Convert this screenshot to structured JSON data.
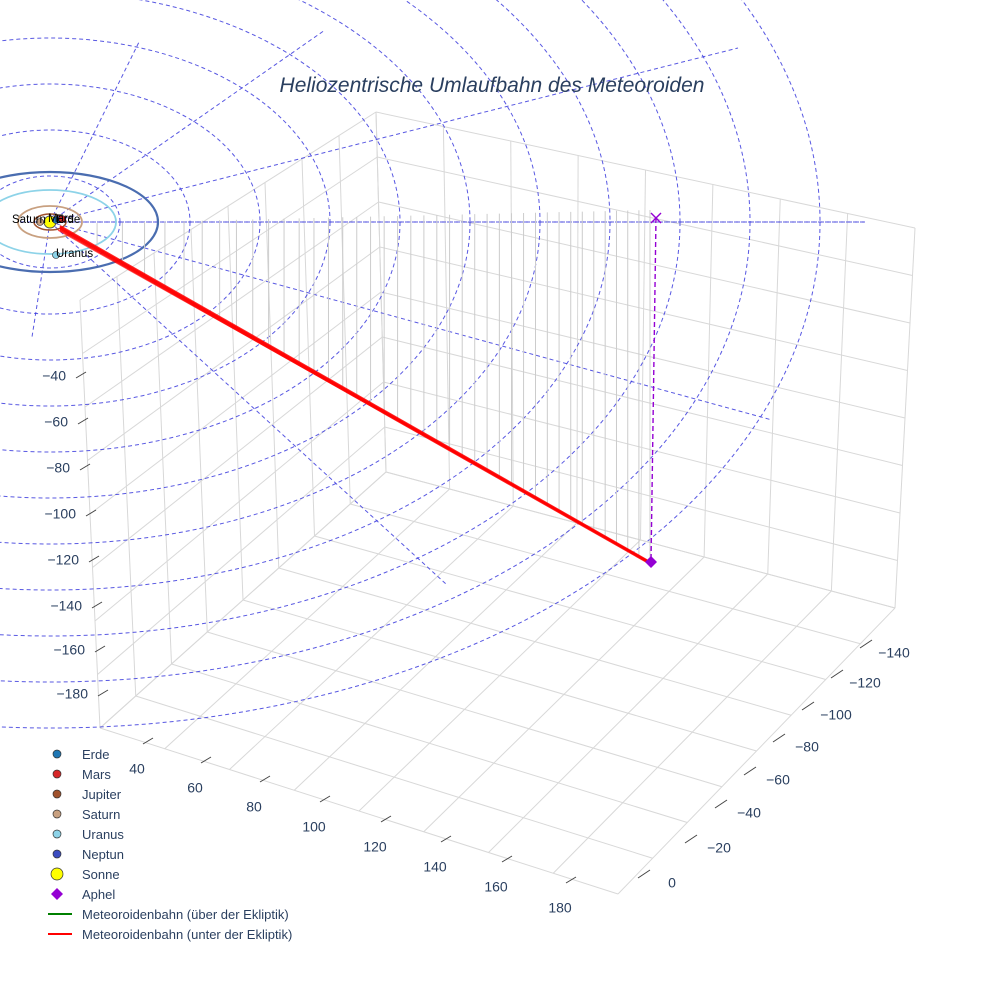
{
  "chart_data": {
    "type": "scatter3d",
    "title": "Heliozentrische Umlaufbahn des Meteoroiden",
    "axes": {
      "x": {
        "ticks": [
          -140,
          -120,
          -100,
          -80,
          -60,
          -40,
          -20,
          0
        ],
        "range": [
          -150,
          10
        ]
      },
      "y": {
        "ticks": [
          40,
          60,
          80,
          100,
          120,
          140,
          160,
          180
        ],
        "range": [
          30,
          190
        ]
      },
      "z": {
        "ticks": [
          -40,
          -60,
          -80,
          -100,
          -120,
          -140,
          -160,
          -180
        ],
        "range": [
          -190,
          -30
        ]
      }
    },
    "grid": true,
    "legend_position": "bottom-left",
    "legend": [
      {
        "name": "Erde",
        "symbol": "circle",
        "color": "#1f77b4"
      },
      {
        "name": "Mars",
        "symbol": "circle",
        "color": "#d62728"
      },
      {
        "name": "Jupiter",
        "symbol": "circle",
        "color": "#a0522d"
      },
      {
        "name": "Saturn",
        "symbol": "circle",
        "color": "#c8a080"
      },
      {
        "name": "Uranus",
        "symbol": "circle",
        "color": "#8dd3e8"
      },
      {
        "name": "Neptun",
        "symbol": "circle",
        "color": "#3b4cc0"
      },
      {
        "name": "Sonne",
        "symbol": "circle-large",
        "color": "#ffff00"
      },
      {
        "name": "Aphel",
        "symbol": "diamond",
        "color": "#9400d3"
      },
      {
        "name": "Meteoroidenbahn (über der Ekliptik)",
        "symbol": "line",
        "color": "#008000"
      },
      {
        "name": "Meteoroidenbahn (unter der Ekliptik)",
        "symbol": "line",
        "color": "#ff0000"
      }
    ],
    "planet_labels": [
      "Saturn",
      "Mars",
      "Erde",
      "Uranus"
    ],
    "colors": {
      "ecliptic_grid": "#3b3bdd",
      "orbit_neptun": "#4a6db0",
      "orbit_uranus": "#8dd3e8",
      "orbit_saturn": "#c8a080",
      "orbit_jupiter": "#a0522d",
      "meteoroid_path": "#ff0000",
      "aphel": "#9400d3",
      "drop_lines": "#cccccc"
    }
  }
}
